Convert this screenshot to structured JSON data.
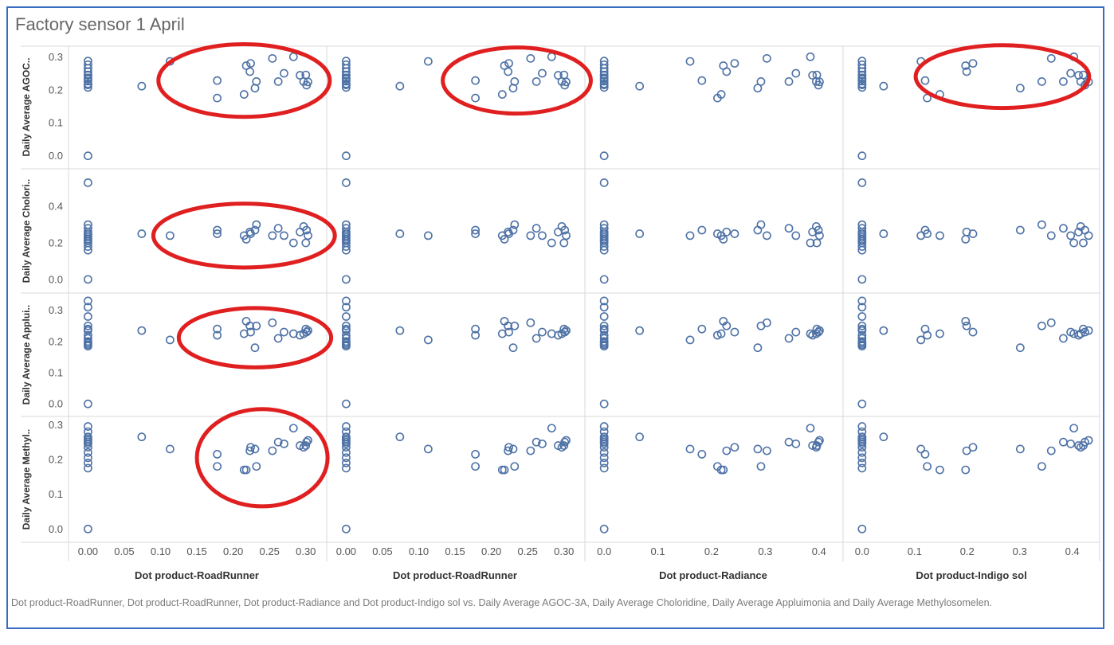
{
  "title": "Factory sensor 1 April",
  "caption": "Dot product-RoadRunner, Dot product-RoadRunner, Dot product-Radiance and Dot product-Indigo sol vs. Daily Average  AGOC-3A, Daily Average  Choloridine, Daily Average  Appluimonia and Daily Average  Methylosomelen.",
  "colors": {
    "marker": "#4e72a6",
    "annotation": "#e02020",
    "grid": "#d9d9d9",
    "frame": "#3b6cc4"
  },
  "chart_data": {
    "type": "scatter",
    "columns": [
      {
        "label": "Dot product-RoadRunner",
        "xlim": [
          -0.018,
          0.32
        ],
        "ticks": [
          0.0,
          0.05,
          0.1,
          0.15,
          0.2,
          0.25,
          0.3
        ],
        "tick_labels": [
          "0.00",
          "0.05",
          "0.10",
          "0.15",
          "0.20",
          "0.25",
          "0.30"
        ]
      },
      {
        "label": "Dot product-RoadRunner",
        "xlim": [
          -0.018,
          0.32
        ],
        "ticks": [
          0.0,
          0.05,
          0.1,
          0.15,
          0.2,
          0.25,
          0.3
        ],
        "tick_labels": [
          "0.00",
          "0.05",
          "0.10",
          "0.15",
          "0.20",
          "0.25",
          "0.30"
        ]
      },
      {
        "label": "Dot product-Radiance",
        "xlim": [
          -0.024,
          0.433
        ],
        "ticks": [
          0.0,
          0.1,
          0.2,
          0.3,
          0.4
        ],
        "tick_labels": [
          "0.0",
          "0.1",
          "0.2",
          "0.3",
          "0.4"
        ]
      },
      {
        "label": "Dot product-Indigo sol",
        "xlim": [
          -0.024,
          0.443
        ],
        "ticks": [
          0.0,
          0.1,
          0.2,
          0.3,
          0.4
        ],
        "tick_labels": [
          "0.0",
          "0.1",
          "0.2",
          "0.3",
          "0.4"
        ]
      }
    ],
    "rows": [
      {
        "label": "Daily Average  AGOC..",
        "ylim": [
          -0.02,
          0.32
        ],
        "ticks": [
          0.0,
          0.1,
          0.2,
          0.3
        ],
        "tick_labels": [
          "0.0",
          "0.1",
          "0.2",
          "0.3"
        ]
      },
      {
        "label": "Daily Average  Cholori..",
        "ylim": [
          -0.04,
          0.58
        ],
        "ticks": [
          0.0,
          0.2,
          0.4
        ],
        "tick_labels": [
          "0.0",
          "0.2",
          "0.4"
        ]
      },
      {
        "label": "Daily Average  Applui..",
        "ylim": [
          -0.02,
          0.34
        ],
        "ticks": [
          0.0,
          0.1,
          0.2,
          0.3
        ],
        "tick_labels": [
          "0.0",
          "0.1",
          "0.2",
          "0.3"
        ]
      },
      {
        "label": "Daily Average  Methyl..",
        "ylim": [
          -0.02,
          0.31
        ],
        "ticks": [
          0.0,
          0.1,
          0.2,
          0.3
        ],
        "tick_labels": [
          "0.0",
          "0.1",
          "0.2",
          "0.3"
        ]
      }
    ],
    "x": {
      "c0": [
        0,
        0,
        0,
        0,
        0,
        0,
        0,
        0,
        0,
        0,
        0,
        0,
        0,
        0.074,
        0.113,
        0.178,
        0.178,
        0.215,
        0.218,
        0.223,
        0.224,
        0.23,
        0.232,
        0.254,
        0.262,
        0.27,
        0.283,
        0.292,
        0.297,
        0.3,
        0.301,
        0.303
      ],
      "c1": [
        0,
        0,
        0,
        0,
        0,
        0,
        0,
        0,
        0,
        0,
        0,
        0,
        0,
        0.074,
        0.113,
        0.178,
        0.178,
        0.215,
        0.218,
        0.223,
        0.224,
        0.23,
        0.232,
        0.254,
        0.262,
        0.27,
        0.283,
        0.292,
        0.297,
        0.3,
        0.301,
        0.303
      ],
      "c2": [
        0,
        0,
        0,
        0,
        0,
        0,
        0,
        0,
        0,
        0,
        0,
        0,
        0,
        0.066,
        0.16,
        0.182,
        0.211,
        0.218,
        0.222,
        0.228,
        0.243,
        0.286,
        0.292,
        0.303,
        0.344,
        0.357,
        0.384,
        0.388,
        0.395,
        0.396,
        0.399,
        0.401
      ],
      "c3": [
        0,
        0,
        0,
        0,
        0,
        0,
        0,
        0,
        0,
        0,
        0,
        0,
        0,
        0.041,
        0.112,
        0.12,
        0.124,
        0.148,
        0.197,
        0.199,
        0.211,
        0.301,
        0.342,
        0.36,
        0.383,
        0.397,
        0.403,
        0.412,
        0.416,
        0.421,
        0.424,
        0.431
      ]
    },
    "y": {
      "r0": [
        0.287,
        0.276,
        0.265,
        0.255,
        0.245,
        0.236,
        0.226,
        0.215,
        0.207,
        0,
        0.218,
        0.232,
        0.244,
        0.211,
        0.286,
        0.228,
        0.175,
        0.186,
        0.273,
        0.255,
        0.28,
        0.205,
        0.225,
        0.295,
        0.225,
        0.25,
        0.3,
        0.244,
        0.225,
        0.245,
        0.214,
        0.224
      ],
      "r1": [
        0.53,
        0.3,
        0.28,
        0.26,
        0.25,
        0.24,
        0.22,
        0.21,
        0.2,
        0,
        0.18,
        0.16,
        0.23,
        0.25,
        0.24,
        0.27,
        0.25,
        0.24,
        0.22,
        0.26,
        0.25,
        0.27,
        0.3,
        0.24,
        0.28,
        0.24,
        0.2,
        0.26,
        0.29,
        0.2,
        0.27,
        0.24
      ],
      "r2": [
        0.33,
        0.31,
        0.28,
        0.25,
        0.235,
        0.22,
        0.21,
        0.195,
        0.185,
        0,
        0.24,
        0.19,
        0.2,
        0.235,
        0.205,
        0.24,
        0.22,
        0.225,
        0.265,
        0.25,
        0.23,
        0.18,
        0.25,
        0.26,
        0.21,
        0.23,
        0.225,
        0.22,
        0.225,
        0.24,
        0.23,
        0.235
      ],
      "r3": [
        0.295,
        0.28,
        0.265,
        0.255,
        0.245,
        0.235,
        0.22,
        0.205,
        0.19,
        0.175,
        0,
        0.26,
        0.25,
        0.265,
        0.23,
        0.215,
        0.18,
        0.17,
        0.17,
        0.225,
        0.235,
        0.23,
        0.18,
        0.225,
        0.25,
        0.245,
        0.29,
        0.24,
        0.235,
        0.24,
        0.25,
        0.255
      ]
    },
    "annotations": [
      {
        "type": "ellipse",
        "row": 0,
        "col": 0,
        "cx": 0.215,
        "cy": 0.228,
        "rx": 0.118,
        "ry": 0.11
      },
      {
        "type": "ellipse",
        "row": 0,
        "col": 1,
        "cx": 0.235,
        "cy": 0.228,
        "rx": 0.102,
        "ry": 0.1
      },
      {
        "type": "ellipse",
        "row": 0,
        "col": 3,
        "cx": 0.267,
        "cy": 0.24,
        "rx": 0.165,
        "ry": 0.095
      },
      {
        "type": "ellipse",
        "row": 1,
        "col": 0,
        "cx": 0.215,
        "cy": 0.24,
        "rx": 0.125,
        "ry": 0.175
      },
      {
        "type": "ellipse",
        "row": 2,
        "col": 0,
        "cx": 0.23,
        "cy": 0.212,
        "rx": 0.105,
        "ry": 0.095
      },
      {
        "type": "ellipse",
        "row": 3,
        "col": 0,
        "cx": 0.24,
        "cy": 0.205,
        "rx": 0.09,
        "ry": 0.14
      }
    ]
  }
}
